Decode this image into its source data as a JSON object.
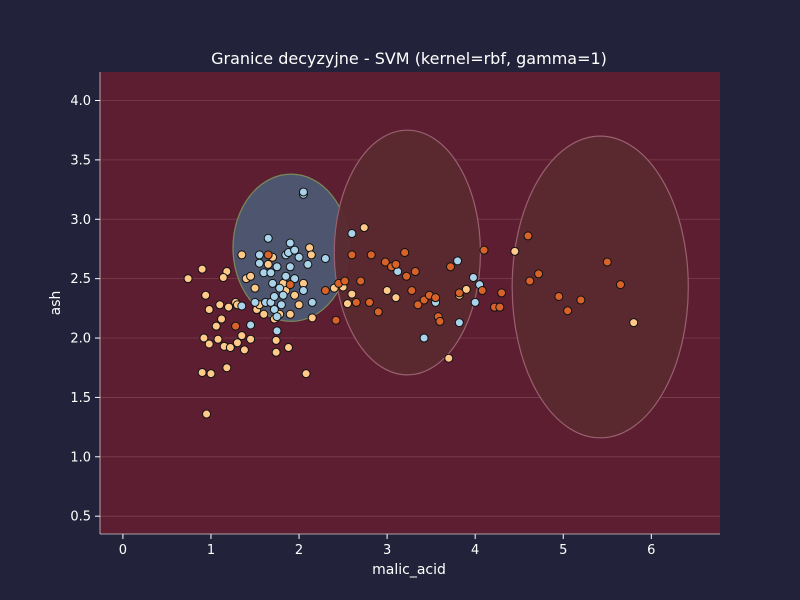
{
  "chart_data": {
    "type": "scatter",
    "title": "Granice decyzyjne - SVM (kernel=rbf, gamma=1)",
    "xlabel": "malic_acid",
    "ylabel": "ash",
    "xlim": [
      -0.26,
      6.78
    ],
    "ylim": [
      0.35,
      4.24
    ],
    "x_ticks": [
      0,
      1,
      2,
      3,
      4,
      5,
      6
    ],
    "y_ticks": [
      0.5,
      1.0,
      1.5,
      2.0,
      2.5,
      3.0,
      3.5,
      4.0
    ],
    "x_tick_labels": [
      "0",
      "1",
      "2",
      "3",
      "4",
      "5",
      "6"
    ],
    "y_tick_labels": [
      "0.5",
      "1.0",
      "1.5",
      "2.0",
      "2.5",
      "3.0",
      "3.5",
      "4.0"
    ],
    "grid": true,
    "colors": {
      "background": "#22223a",
      "plot_background": "#5c1e30",
      "grid": "#7a4050",
      "region_class_1": "#4c5a72",
      "region_class_0": "#5a2a30",
      "class_0": "#ffc98a",
      "class_1": "#a9d3ea",
      "class_2": "#d8632a"
    },
    "decision_regions": [
      {
        "class": "class_1",
        "shape": "ellipse",
        "center": [
          1.91,
          2.76
        ],
        "radius": [
          0.66,
          0.62
        ]
      },
      {
        "class": "class_0",
        "shape": "ellipse",
        "center": [
          3.23,
          2.72
        ],
        "radius": [
          0.83,
          1.03
        ]
      },
      {
        "class": "class_0",
        "shape": "ellipse",
        "center": [
          5.42,
          2.43
        ],
        "radius": [
          1.0,
          1.27
        ]
      }
    ],
    "series": [
      {
        "class": "class_0",
        "points": [
          [
            0.74,
            2.5
          ],
          [
            0.9,
            2.58
          ],
          [
            0.94,
            2.36
          ],
          [
            0.98,
            2.24
          ],
          [
            1.06,
            2.1
          ],
          [
            1.12,
            2.16
          ],
          [
            1.2,
            2.26
          ],
          [
            1.18,
            2.56
          ],
          [
            1.14,
            2.51
          ],
          [
            1.1,
            2.28
          ],
          [
            1.28,
            2.3
          ],
          [
            1.3,
            2.28
          ],
          [
            1.35,
            2.7
          ],
          [
            1.4,
            2.5
          ],
          [
            1.45,
            2.52
          ],
          [
            1.5,
            2.42
          ],
          [
            1.52,
            2.24
          ],
          [
            1.55,
            2.28
          ],
          [
            1.6,
            2.2
          ],
          [
            1.62,
            2.3
          ],
          [
            1.65,
            2.62
          ],
          [
            1.7,
            2.68
          ],
          [
            1.72,
            2.16
          ],
          [
            1.78,
            2.2
          ],
          [
            1.82,
            2.46
          ],
          [
            1.85,
            2.4
          ],
          [
            1.9,
            2.2
          ],
          [
            1.95,
            2.36
          ],
          [
            2.0,
            2.28
          ],
          [
            2.05,
            2.46
          ],
          [
            2.12,
            2.76
          ],
          [
            2.14,
            2.7
          ],
          [
            2.15,
            2.17
          ],
          [
            0.92,
            2.0
          ],
          [
            0.98,
            1.95
          ],
          [
            1.08,
            1.99
          ],
          [
            1.15,
            1.93
          ],
          [
            1.22,
            1.92
          ],
          [
            1.3,
            1.96
          ],
          [
            1.35,
            2.02
          ],
          [
            1.38,
            1.9
          ],
          [
            1.45,
            1.99
          ],
          [
            1.74,
            1.98
          ],
          [
            1.74,
            1.88
          ],
          [
            1.88,
            1.92
          ],
          [
            0.9,
            1.71
          ],
          [
            1.0,
            1.7
          ],
          [
            1.18,
            1.75
          ],
          [
            0.95,
            1.36
          ],
          [
            2.08,
            1.7
          ],
          [
            2.4,
            2.42
          ],
          [
            2.5,
            2.43
          ],
          [
            2.55,
            2.29
          ],
          [
            2.6,
            2.37
          ],
          [
            2.74,
            2.93
          ],
          [
            3.0,
            2.4
          ],
          [
            3.1,
            2.34
          ],
          [
            3.42,
            2.0
          ],
          [
            3.7,
            1.83
          ],
          [
            3.82,
            2.36
          ],
          [
            3.9,
            2.41
          ],
          [
            4.45,
            2.73
          ],
          [
            5.8,
            2.13
          ]
        ]
      },
      {
        "class": "class_1",
        "points": [
          [
            1.35,
            2.27
          ],
          [
            1.45,
            2.11
          ],
          [
            1.5,
            2.3
          ],
          [
            1.55,
            2.7
          ],
          [
            1.55,
            2.63
          ],
          [
            1.6,
            2.55
          ],
          [
            1.62,
            2.3
          ],
          [
            1.65,
            2.84
          ],
          [
            1.68,
            2.3
          ],
          [
            1.7,
            2.46
          ],
          [
            1.68,
            2.55
          ],
          [
            1.72,
            2.35
          ],
          [
            1.75,
            2.6
          ],
          [
            1.72,
            2.24
          ],
          [
            1.75,
            2.18
          ],
          [
            1.78,
            2.42
          ],
          [
            1.8,
            2.28
          ],
          [
            1.82,
            2.36
          ],
          [
            1.85,
            2.52
          ],
          [
            1.85,
            2.7
          ],
          [
            1.88,
            2.72
          ],
          [
            1.9,
            2.6
          ],
          [
            1.9,
            2.8
          ],
          [
            1.95,
            2.5
          ],
          [
            1.95,
            2.74
          ],
          [
            2.0,
            2.68
          ],
          [
            2.05,
            2.4
          ],
          [
            2.1,
            2.62
          ],
          [
            2.15,
            2.3
          ],
          [
            1.75,
            2.06
          ],
          [
            2.05,
            3.21
          ],
          [
            2.05,
            3.23
          ],
          [
            2.3,
            2.67
          ],
          [
            2.6,
            2.88
          ],
          [
            3.12,
            2.56
          ],
          [
            3.42,
            2.0
          ],
          [
            3.55,
            2.3
          ],
          [
            3.82,
            2.13
          ],
          [
            3.8,
            2.65
          ],
          [
            4.05,
            2.45
          ],
          [
            3.98,
            2.51
          ],
          [
            4.0,
            2.3
          ]
        ]
      },
      {
        "class": "class_2",
        "points": [
          [
            1.28,
            2.1
          ],
          [
            1.65,
            2.7
          ],
          [
            1.9,
            2.45
          ],
          [
            2.3,
            2.4
          ],
          [
            2.45,
            2.46
          ],
          [
            2.52,
            2.48
          ],
          [
            2.42,
            2.15
          ],
          [
            2.6,
            2.7
          ],
          [
            2.65,
            2.3
          ],
          [
            2.7,
            2.48
          ],
          [
            2.8,
            2.3
          ],
          [
            2.82,
            2.7
          ],
          [
            2.9,
            2.22
          ],
          [
            2.98,
            2.64
          ],
          [
            3.05,
            2.6
          ],
          [
            3.1,
            2.62
          ],
          [
            3.2,
            2.72
          ],
          [
            3.22,
            2.52
          ],
          [
            3.28,
            2.4
          ],
          [
            3.32,
            2.56
          ],
          [
            3.35,
            2.28
          ],
          [
            3.42,
            2.32
          ],
          [
            3.48,
            2.36
          ],
          [
            3.55,
            2.34
          ],
          [
            3.58,
            2.18
          ],
          [
            3.6,
            2.14
          ],
          [
            3.72,
            2.6
          ],
          [
            3.82,
            2.38
          ],
          [
            4.08,
            2.4
          ],
          [
            4.1,
            2.74
          ],
          [
            4.22,
            2.26
          ],
          [
            4.28,
            2.26
          ],
          [
            4.3,
            2.38
          ],
          [
            4.6,
            2.86
          ],
          [
            4.62,
            2.48
          ],
          [
            4.72,
            2.54
          ],
          [
            4.95,
            2.35
          ],
          [
            5.05,
            2.23
          ],
          [
            5.2,
            2.32
          ],
          [
            5.5,
            2.64
          ],
          [
            5.65,
            2.45
          ]
        ]
      }
    ]
  }
}
